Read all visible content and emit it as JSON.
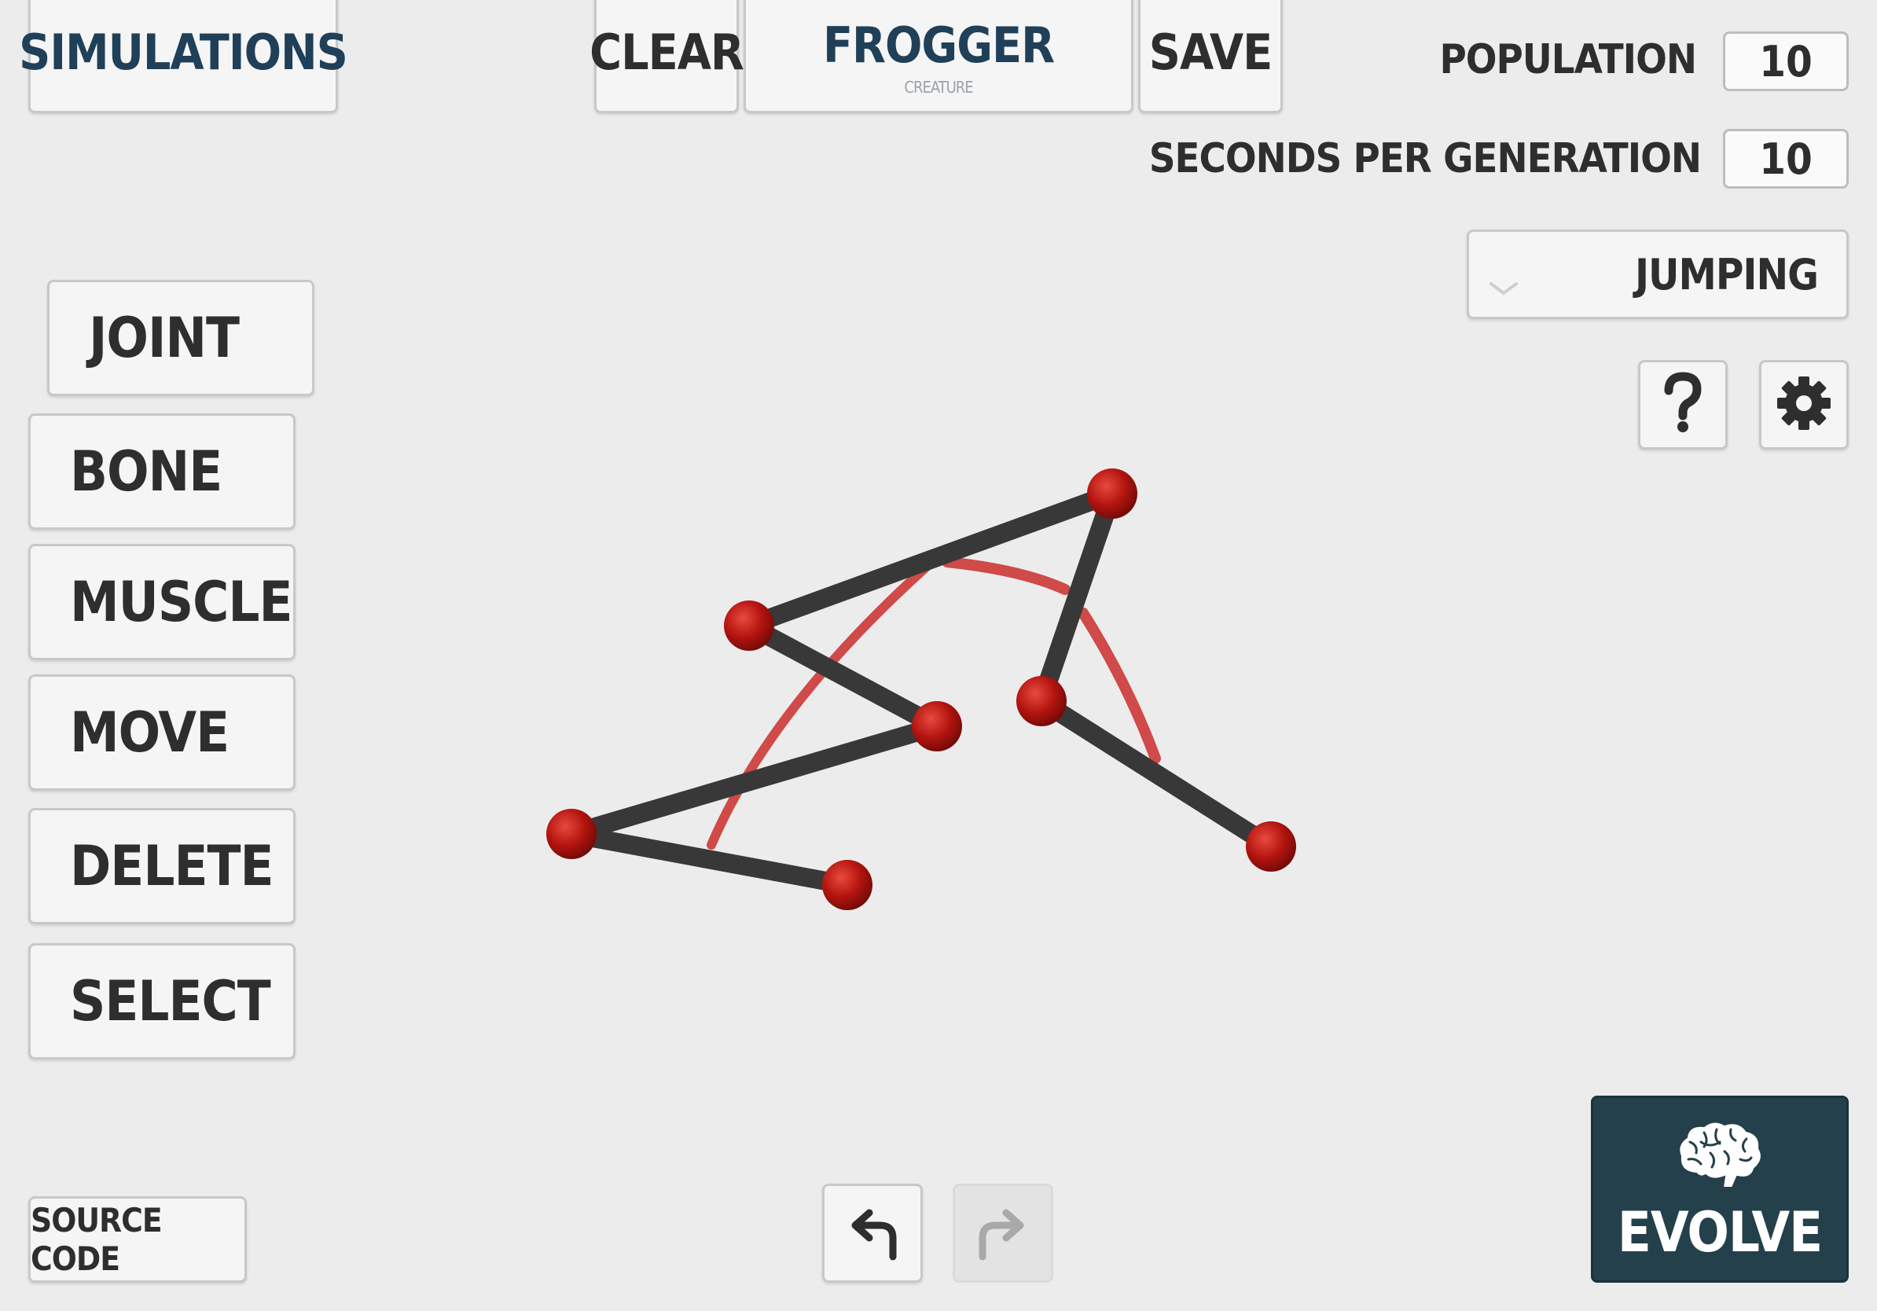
{
  "header": {
    "simulations_label": "SIMULATIONS",
    "clear_label": "CLEAR",
    "creature_name": "FROGGER",
    "creature_sub": "CREATURE",
    "save_label": "SAVE"
  },
  "settings": {
    "population_label": "POPULATION",
    "population_value": "10",
    "seconds_label": "SECONDS PER GENERATION",
    "seconds_value": "10",
    "mode_selected": "JUMPING"
  },
  "tools": [
    {
      "label": "JOINT"
    },
    {
      "label": "BONE"
    },
    {
      "label": "MUSCLE"
    },
    {
      "label": "MOVE"
    },
    {
      "label": "DELETE"
    },
    {
      "label": "SELECT"
    }
  ],
  "footer": {
    "source_code_label": "SOURCE CODE",
    "evolve_label": "EVOLVE"
  },
  "icons": {
    "help": "question-icon",
    "settings": "gear-icon",
    "undo": "undo-icon",
    "redo": "redo-icon",
    "brain": "brain-icon",
    "dropdown": "chevron-down-icon"
  },
  "colors": {
    "bone": "#383838",
    "joint": "#b3140f",
    "muscle": "#cf4a48",
    "accent_dark": "#24404b",
    "title_blue": "#1f4058"
  }
}
